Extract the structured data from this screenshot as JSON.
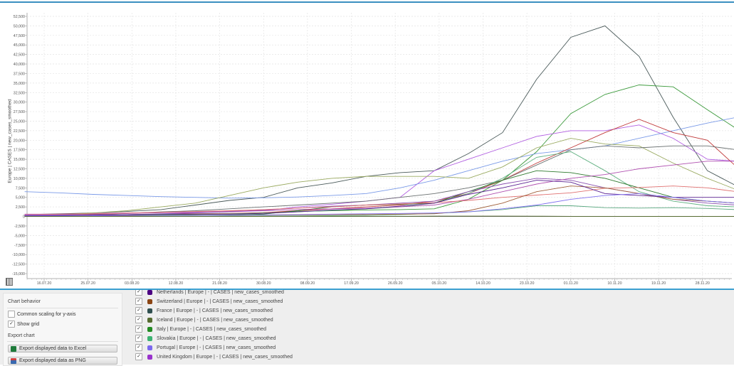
{
  "chart_data": {
    "type": "line",
    "ylabel": "Europe | CASES | new_cases_smoothed",
    "ylim": [
      -15000,
      52500
    ],
    "y_tick_step": 2500,
    "x_tick_labels": [
      "16.07.20",
      "25.07.20",
      "03.08.20",
      "12.08.20",
      "21.08.20",
      "30.08.20",
      "08.09.20",
      "17.09.20",
      "26.09.20",
      "05.10.20",
      "14.10.20",
      "23.10.20",
      "01.11.20",
      "10.11.20",
      "19.11.20",
      "28.11.20"
    ],
    "grid": true,
    "x": [
      "2020-07-12",
      "2020-07-19",
      "2020-07-26",
      "2020-08-02",
      "2020-08-09",
      "2020-08-16",
      "2020-08-23",
      "2020-08-30",
      "2020-09-06",
      "2020-09-13",
      "2020-09-20",
      "2020-09-27",
      "2020-10-04",
      "2020-10-11",
      "2020-10-18",
      "2020-10-25",
      "2020-11-01",
      "2020-11-08",
      "2020-11-15",
      "2020-11-22",
      "2020-11-29",
      "2020-12-05"
    ],
    "series": [
      {
        "name": "France | Europe | - | CASES | new_cases_smoothed",
        "color": "#4a5a5a",
        "values": [
          500,
          700,
          900,
          1300,
          1800,
          3000,
          4200,
          5000,
          7500,
          8800,
          10500,
          11500,
          12000,
          16500,
          22000,
          36000,
          47000,
          50000,
          42000,
          26000,
          12000,
          8000
        ]
      },
      {
        "name": "Italy | Europe | - | CASES | new_cases_smoothed",
        "color": "#3c9a3c",
        "values": [
          200,
          250,
          300,
          350,
          400,
          500,
          700,
          1000,
          1300,
          1500,
          1700,
          1800,
          2000,
          4500,
          9500,
          17000,
          27000,
          32000,
          34500,
          34000,
          28000,
          23000
        ]
      },
      {
        "name": "United Kingdom | Europe | - | CASES | new_cases_smoothed",
        "color": "#b05ce0",
        "values": [
          600,
          600,
          800,
          900,
          1000,
          1000,
          1200,
          1500,
          2500,
          3200,
          4000,
          5000,
          12000,
          15000,
          18000,
          21000,
          22500,
          22500,
          24000,
          20500,
          15000,
          14500
        ]
      },
      {
        "color": "#7a9ae8",
        "values": [
          6500,
          6200,
          5800,
          5500,
          5200,
          5000,
          4800,
          4900,
          5100,
          5500,
          6000,
          7500,
          9500,
          12000,
          14500,
          16500,
          17500,
          18500,
          20500,
          22500,
          24500,
          26000
        ]
      },
      {
        "color": "#9aaa60",
        "values": [
          200,
          500,
          900,
          1500,
          2500,
          3500,
          5500,
          7500,
          9000,
          10000,
          10500,
          10500,
          10500,
          10000,
          13000,
          18000,
          20500,
          19000,
          18500,
          14000,
          10000,
          7000
        ]
      },
      {
        "color": "#c03a3a",
        "values": [
          200,
          300,
          400,
          500,
          600,
          700,
          800,
          1000,
          1500,
          2000,
          2500,
          3000,
          4000,
          6000,
          9500,
          14000,
          18000,
          22000,
          25500,
          22000,
          20000,
          13000
        ]
      },
      {
        "color": "#6a7070",
        "values": [
          300,
          400,
          500,
          800,
          1200,
          1500,
          2000,
          2500,
          3000,
          3500,
          4000,
          5000,
          6000,
          7500,
          9500,
          13500,
          17500,
          18500,
          18000,
          18500,
          18500,
          17500
        ]
      },
      {
        "name": "Slovakia | Europe | - | CASES | new_cases_smoothed",
        "color": "#5aa880",
        "values": [
          10,
          10,
          20,
          30,
          40,
          50,
          70,
          100,
          150,
          200,
          300,
          500,
          800,
          1200,
          1800,
          2800,
          2800,
          2300,
          2200,
          2300,
          2100,
          1800
        ]
      },
      {
        "color": "#60b080",
        "values": [
          100,
          200,
          300,
          400,
          500,
          600,
          700,
          900,
          1200,
          1600,
          2000,
          2500,
          3500,
          6000,
          10000,
          15500,
          17000,
          12000,
          6500,
          4000,
          2800,
          2500
        ]
      },
      {
        "color": "#2e7a2e",
        "values": [
          100,
          100,
          150,
          200,
          250,
          300,
          400,
          600,
          1500,
          2500,
          3000,
          3200,
          3500,
          6500,
          9500,
          12000,
          11500,
          10000,
          7500,
          5000,
          4000,
          3500
        ]
      },
      {
        "color": "#8a50b0",
        "values": [
          200,
          300,
          400,
          500,
          700,
          900,
          1200,
          1700,
          2200,
          2700,
          3000,
          3500,
          4000,
          6500,
          8500,
          10000,
          9500,
          7500,
          6000,
          4500,
          3500,
          3000
        ]
      },
      {
        "color": "#b050b0",
        "values": [
          400,
          500,
          600,
          800,
          1000,
          1200,
          1400,
          1500,
          1800,
          2000,
          2200,
          2500,
          3000,
          4500,
          6500,
          8500,
          10000,
          11000,
          12500,
          13500,
          14500,
          14500
        ]
      },
      {
        "color": "#e07070",
        "values": [
          500,
          600,
          700,
          900,
          1100,
          1300,
          1500,
          1800,
          2200,
          2500,
          3000,
          3300,
          3600,
          4200,
          5000,
          5600,
          6200,
          7400,
          7600,
          8000,
          7500,
          6500
        ]
      },
      {
        "name": "Switzerland | Europe | - | CASES | new_cases_smoothed",
        "color": "#a0603a",
        "values": [
          100,
          100,
          150,
          200,
          250,
          300,
          300,
          350,
          400,
          450,
          500,
          600,
          700,
          1500,
          3500,
          6500,
          8000,
          7500,
          6000,
          4500,
          4000,
          3500
        ]
      },
      {
        "name": "Netherlands | Europe | - | CASES | new_cases_smoothed",
        "color": "#5a2090",
        "values": [
          100,
          150,
          300,
          500,
          600,
          600,
          600,
          800,
          1200,
          1700,
          2000,
          2700,
          3500,
          5800,
          7500,
          9500,
          9000,
          6000,
          5500,
          5000,
          5000,
          5000
        ]
      },
      {
        "name": "Portugal | Europe | - | CASES | new_cases_smoothed",
        "color": "#8070f0",
        "values": [
          300,
          300,
          200,
          250,
          250,
          250,
          300,
          400,
          500,
          600,
          700,
          800,
          900,
          1200,
          2000,
          3000,
          4500,
          5500,
          6000,
          5000,
          4000,
          3500
        ]
      },
      {
        "name": "Iceland | Europe | - | CASES | new_cases_smoothed",
        "color": "#556b2f",
        "values": [
          0,
          5,
          5,
          10,
          20,
          15,
          10,
          10,
          20,
          30,
          40,
          50,
          80,
          90,
          80,
          60,
          30,
          20,
          15,
          10,
          10,
          10
        ]
      }
    ]
  },
  "settings": {
    "chart_behavior_label": "Chart behavior",
    "common_scaling_label": "Common scaling for y-axis",
    "common_scaling_checked": false,
    "show_grid_label": "Show grid",
    "show_grid_checked": true,
    "export_label": "Export chart",
    "export_excel_label": "Export displayed data to Excel",
    "export_png_label": "Export displayed data as PNG",
    "check_mark": "✓"
  },
  "legend": [
    {
      "label": "Netherlands | Europe | - | CASES | new_cases_smoothed",
      "color": "#4b0082",
      "checked": true
    },
    {
      "label": "Switzerland | Europe | - | CASES | new_cases_smoothed",
      "color": "#8b4513",
      "checked": true
    },
    {
      "label": "France | Europe | - | CASES | new_cases_smoothed",
      "color": "#2f4f4f",
      "checked": true
    },
    {
      "label": "Iceland | Europe | - | CASES | new_cases_smoothed",
      "color": "#556b2f",
      "checked": true
    },
    {
      "label": "Italy | Europe | - | CASES | new_cases_smoothed",
      "color": "#228b22",
      "checked": true
    },
    {
      "label": "Slovakia | Europe | - | CASES | new_cases_smoothed",
      "color": "#3cb371",
      "checked": true
    },
    {
      "label": "Portugal | Europe | - | CASES | new_cases_smoothed",
      "color": "#7b68ee",
      "checked": true
    },
    {
      "label": "United Kingdom | Europe | - | CASES | new_cases_smoothed",
      "color": "#9932cc",
      "checked": true
    }
  ]
}
